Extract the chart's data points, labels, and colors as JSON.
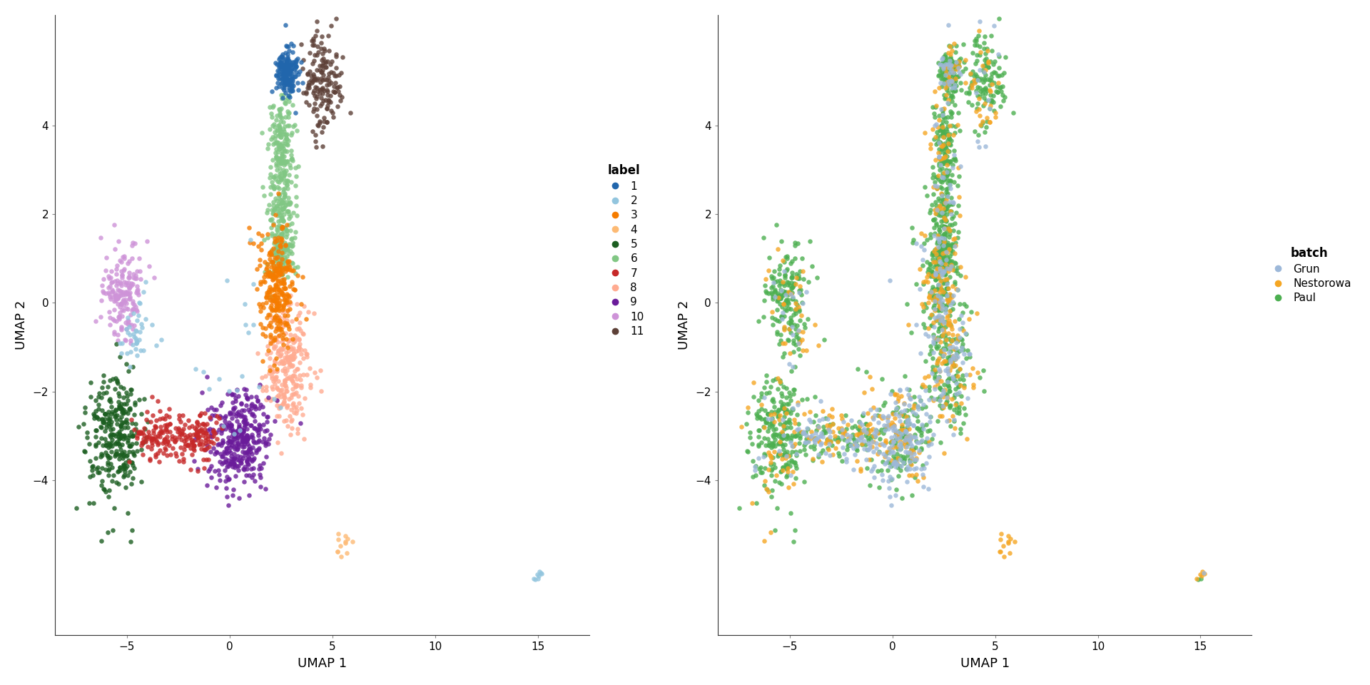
{
  "seed": 42,
  "label_colors": {
    "1": "#2166AC",
    "2": "#92C5DE",
    "3": "#F57C00",
    "4": "#FDBA74",
    "5": "#1B5E20",
    "6": "#81C784",
    "7": "#C62828",
    "8": "#FFAB91",
    "9": "#6A1B9A",
    "10": "#CE93D8",
    "11": "#5D4037"
  },
  "batch_colors": {
    "Grun": "#9DB8D9",
    "Nestorowa": "#F5A623",
    "Paul": "#4CAF50"
  },
  "xlim": [
    -8.5,
    17.5
  ],
  "ylim": [
    -7.5,
    6.5
  ],
  "xticks": [
    -5,
    0,
    5,
    10,
    15
  ],
  "yticks": [
    -4,
    -2,
    0,
    2,
    4
  ],
  "xlabel": "UMAP 1",
  "ylabel": "UMAP 2",
  "legend_label_title": "label",
  "legend_batch_title": "batch",
  "point_size": 22,
  "alpha": 0.8,
  "background_color": "#FFFFFF",
  "spine_color": "#333333"
}
